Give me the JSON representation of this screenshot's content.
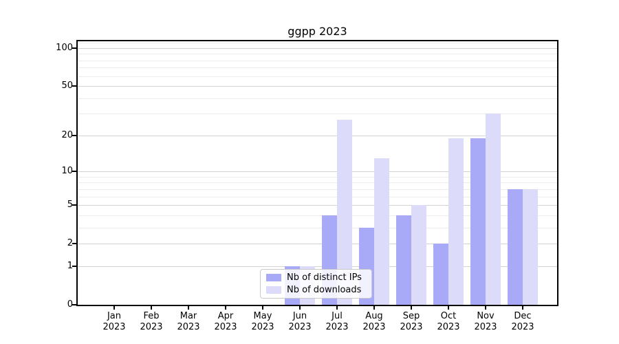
{
  "chart_data": {
    "type": "bar",
    "title": "ggpp 2023",
    "categories": [
      "Jan",
      "Feb",
      "Mar",
      "Apr",
      "May",
      "Jun",
      "Jul",
      "Aug",
      "Sep",
      "Oct",
      "Nov",
      "Dec"
    ],
    "xtick_year": "2023",
    "series": [
      {
        "name": "Nb of distinct IPs",
        "color": "#a8aaf8",
        "values": [
          0,
          0,
          0,
          0,
          0,
          1,
          4,
          3,
          4,
          2,
          19,
          7
        ]
      },
      {
        "name": "Nb of downloads",
        "color": "#dcdcfa",
        "values": [
          0,
          0,
          0,
          0,
          0,
          1,
          27,
          13,
          5,
          19,
          30,
          7
        ]
      }
    ],
    "xlabel": "",
    "ylabel": "",
    "yscale": "log10(1+y)",
    "yticks": [
      0,
      1,
      2,
      5,
      10,
      20,
      50,
      100
    ],
    "yticks_minor": [
      3,
      4,
      6,
      7,
      8,
      9,
      30,
      40,
      60,
      70,
      80,
      90,
      110
    ],
    "ylim": [
      0,
      113
    ],
    "grid": "on",
    "legend_position": "lower center"
  }
}
